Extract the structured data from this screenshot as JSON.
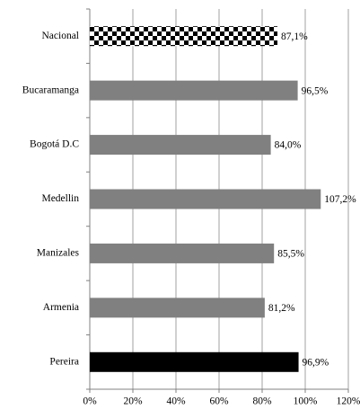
{
  "chart_data": {
    "type": "bar",
    "orientation": "horizontal",
    "categories": [
      "Nacional",
      "Bucaramanga",
      "Bogotá D.C",
      "Medellin",
      "Manizales",
      "Armenia",
      "Pereira"
    ],
    "values": [
      87.1,
      96.5,
      84.0,
      107.2,
      85.5,
      81.2,
      96.9
    ],
    "value_labels": [
      "87,1%",
      "96,5%",
      "84,0%",
      "107,2%",
      "85,5%",
      "81,2%",
      "96,9%"
    ],
    "colors": [
      "#000000",
      "#808080",
      "#808080",
      "#808080",
      "#808080",
      "#808080",
      "#000000"
    ],
    "patterns": [
      "checkerboard",
      null,
      null,
      null,
      null,
      null,
      null
    ],
    "xlim": [
      0,
      120
    ],
    "xticks": [
      {
        "value": 0,
        "label": "0%"
      },
      {
        "value": 20,
        "label": "20%"
      },
      {
        "value": 40,
        "label": "40%"
      },
      {
        "value": 60,
        "label": "60%"
      },
      {
        "value": 80,
        "label": "80%"
      },
      {
        "value": 100,
        "label": "100%"
      },
      {
        "value": 120,
        "label": "120%"
      }
    ],
    "grid": true
  }
}
